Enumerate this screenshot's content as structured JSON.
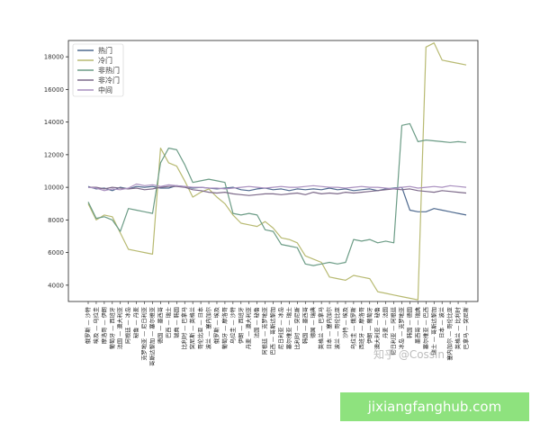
{
  "chart_data": {
    "type": "line",
    "xlabel": "",
    "ylabel": "",
    "ylim": [
      3000,
      19000
    ],
    "yticks": [
      4000,
      6000,
      8000,
      10000,
      12000,
      14000,
      16000,
      18000
    ],
    "legend_position": "top-left",
    "grid": false,
    "categories": [
      "俄罗斯 — 沙特",
      "埃及 — 乌拉圭",
      "摩洛哥 — 伊朗",
      "葡萄牙 — 西班牙",
      "法国 — 澳大利亚",
      "阿根廷 — 冰岛",
      "秘鲁 — 丹麦",
      "克罗地亚 — 尼日利亚",
      "哥斯达黎加 — 塞尔维亚",
      "德国 — 墨西哥",
      "巴西 — 瑞士",
      "瑞典 — 韩国",
      "比利时 — 巴拿马",
      "突尼斯 — 英格兰",
      "哥伦比亚 — 日本",
      "波兰 — 塞内加尔",
      "俄罗斯 — 埃及",
      "葡萄牙 — 摩洛哥",
      "乌拉圭 — 沙特",
      "伊朗 — 西班牙",
      "丹麦 — 澳大利亚",
      "法国 — 秘鲁",
      "阿根廷 — 克罗地亚",
      "巴西 — 哥斯达黎加",
      "尼日利亚 — 冰岛",
      "塞尔维亚 — 瑞士",
      "比利时 — 突尼斯",
      "韩国 — 墨西哥",
      "德国 — 瑞典",
      "英格兰 — 巴拿马",
      "日本 — 塞内加尔",
      "波兰 — 哥伦比亚",
      "沙特 — 埃及",
      "乌拉圭 — 俄罗斯",
      "西班牙 — 摩洛哥",
      "伊朗 — 葡萄牙",
      "澳大利亚 — 秘鲁",
      "丹麦 — 法国",
      "尼日利亚 — 阿根廷",
      "冰岛 — 克罗地亚",
      "韩国 — 德国",
      "墨西哥 — 瑞典",
      "塞尔维亚 — 巴西",
      "瑞士 — 哥斯达黎加",
      "日本 — 波兰",
      "塞内加尔 — 哥伦比亚",
      "英格兰 — 比利时",
      "巴拿马 — 突尼斯"
    ],
    "series": [
      {
        "name": "热门",
        "color": "#4f6a8f",
        "values": [
          10050,
          9900,
          9950,
          9800,
          10000,
          9900,
          10050,
          10000,
          10050,
          9950,
          9950,
          10100,
          10050,
          9950,
          10000,
          9950,
          9900,
          9950,
          10000,
          9850,
          9800,
          9900,
          9950,
          9850,
          9900,
          9800,
          9900,
          9850,
          9900,
          9850,
          9950,
          9850,
          9900,
          9800,
          9850,
          9900,
          9800,
          9900,
          9950,
          10000,
          8600,
          8500,
          8500,
          8700,
          8600,
          8500,
          8400,
          8300
        ]
      },
      {
        "name": "冷门",
        "color": "#b8ba72",
        "values": [
          9000,
          8000,
          8300,
          8200,
          7200,
          6200,
          6100,
          6000,
          5900,
          12400,
          11500,
          11300,
          10400,
          9400,
          9700,
          9900,
          9400,
          9000,
          8300,
          7800,
          7700,
          7600,
          7900,
          7500,
          6900,
          6800,
          6600,
          5800,
          5600,
          5400,
          4500,
          4400,
          4300,
          4600,
          4500,
          4400,
          3600,
          3500,
          3400,
          3300,
          3200,
          3100,
          18600,
          18850,
          17800,
          17700,
          17600,
          17500
        ]
      },
      {
        "name": "非热门",
        "color": "#6c9c86",
        "values": [
          9100,
          8100,
          8200,
          8000,
          7300,
          8700,
          8600,
          8500,
          8400,
          11500,
          12400,
          12300,
          11400,
          10300,
          10400,
          10500,
          10400,
          10300,
          8400,
          8300,
          8400,
          8300,
          7400,
          7300,
          6500,
          6400,
          6300,
          5300,
          5200,
          5300,
          5400,
          5300,
          5400,
          6800,
          6700,
          6800,
          6600,
          6700,
          6600,
          13800,
          13900,
          12800,
          12900,
          12850,
          12800,
          12750,
          12800,
          12750
        ]
      },
      {
        "name": "非冷门",
        "color": "#7d6a8a",
        "values": [
          10000,
          10000,
          9900,
          10000,
          9950,
          9900,
          9950,
          9850,
          9900,
          10000,
          10050,
          10050,
          10000,
          9850,
          9800,
          9700,
          9650,
          9700,
          9600,
          9550,
          9500,
          9550,
          9600,
          9600,
          9550,
          9600,
          9650,
          9550,
          9700,
          9600,
          9650,
          9600,
          9700,
          9650,
          9700,
          9750,
          9800,
          9850,
          9900,
          9850,
          9900,
          9800,
          9750,
          9700,
          9800,
          9750,
          9700,
          9650
        ]
      },
      {
        "name": "中间",
        "color": "#a98fbf",
        "values": [
          10000,
          9950,
          9800,
          9900,
          9850,
          9950,
          10200,
          10100,
          10150,
          10050,
          10150,
          10100,
          10050,
          10000,
          10000,
          9950,
          9950,
          9900,
          9950,
          10000,
          10050,
          10000,
          9950,
          10000,
          10050,
          10000,
          10000,
          10050,
          10100,
          10050,
          10000,
          10000,
          9950,
          10000,
          10050,
          10000,
          10000,
          9950,
          9900,
          10000,
          10050,
          9950,
          10000,
          10050,
          10000,
          10100,
          10050,
          10000
        ]
      }
    ]
  },
  "watermark_text": "知乎 @Cossin",
  "banner_text": "jixiangfanghub.com"
}
